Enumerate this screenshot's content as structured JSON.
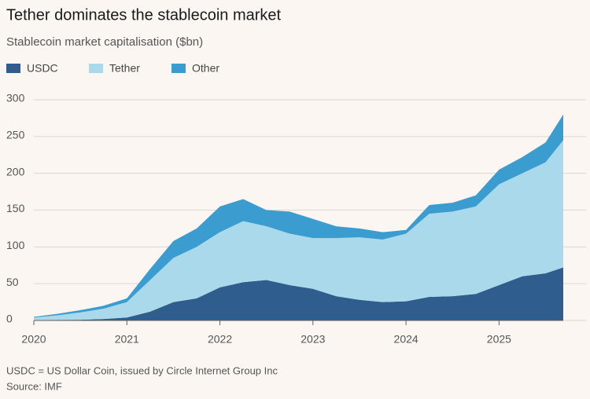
{
  "chart_data": {
    "type": "stacked_area",
    "title": "Tether dominates the stablecoin market",
    "subtitle": "Stablecoin market capitalisation ($bn)",
    "note": "USDC = US Dollar Coin, issued by Circle Internet Group Inc",
    "source": "Source: IMF",
    "x": [
      2020.0,
      2020.25,
      2020.5,
      2020.75,
      2021.0,
      2021.25,
      2021.5,
      2021.75,
      2022.0,
      2022.25,
      2022.5,
      2022.75,
      2023.0,
      2023.25,
      2023.5,
      2023.75,
      2024.0,
      2024.25,
      2024.5,
      2024.75,
      2025.0,
      2025.25,
      2025.5,
      2025.69
    ],
    "series": [
      {
        "name": "USDC",
        "color": "#2f5e8e",
        "values": [
          0.5,
          0.8,
          1,
          2,
          4,
          12,
          25,
          30,
          45,
          52,
          55,
          48,
          43,
          33,
          28,
          25,
          26,
          32,
          33,
          36,
          48,
          60,
          64,
          72
        ]
      },
      {
        "name": "Tether",
        "color": "#a9d9ea",
        "values": [
          3.5,
          6.2,
          10,
          14,
          21,
          43,
          60,
          70,
          75,
          83,
          73,
          70,
          69,
          79,
          85,
          85,
          92,
          113,
          115,
          119,
          137,
          140,
          151,
          173
        ]
      },
      {
        "name": "Other",
        "color": "#3b9ccf",
        "values": [
          1,
          2,
          3,
          4,
          5,
          15,
          23,
          25,
          35,
          30,
          22,
          30,
          26,
          16,
          12,
          10,
          5,
          12,
          12,
          15,
          20,
          22,
          27,
          35
        ]
      }
    ],
    "xlim": [
      2020.0,
      2025.69
    ],
    "xticks": [
      2020,
      2021,
      2022,
      2023,
      2024,
      2025
    ],
    "ylim": [
      0,
      300
    ],
    "yticks": [
      0,
      50,
      100,
      150,
      200,
      250,
      300
    ],
    "grid": true
  }
}
